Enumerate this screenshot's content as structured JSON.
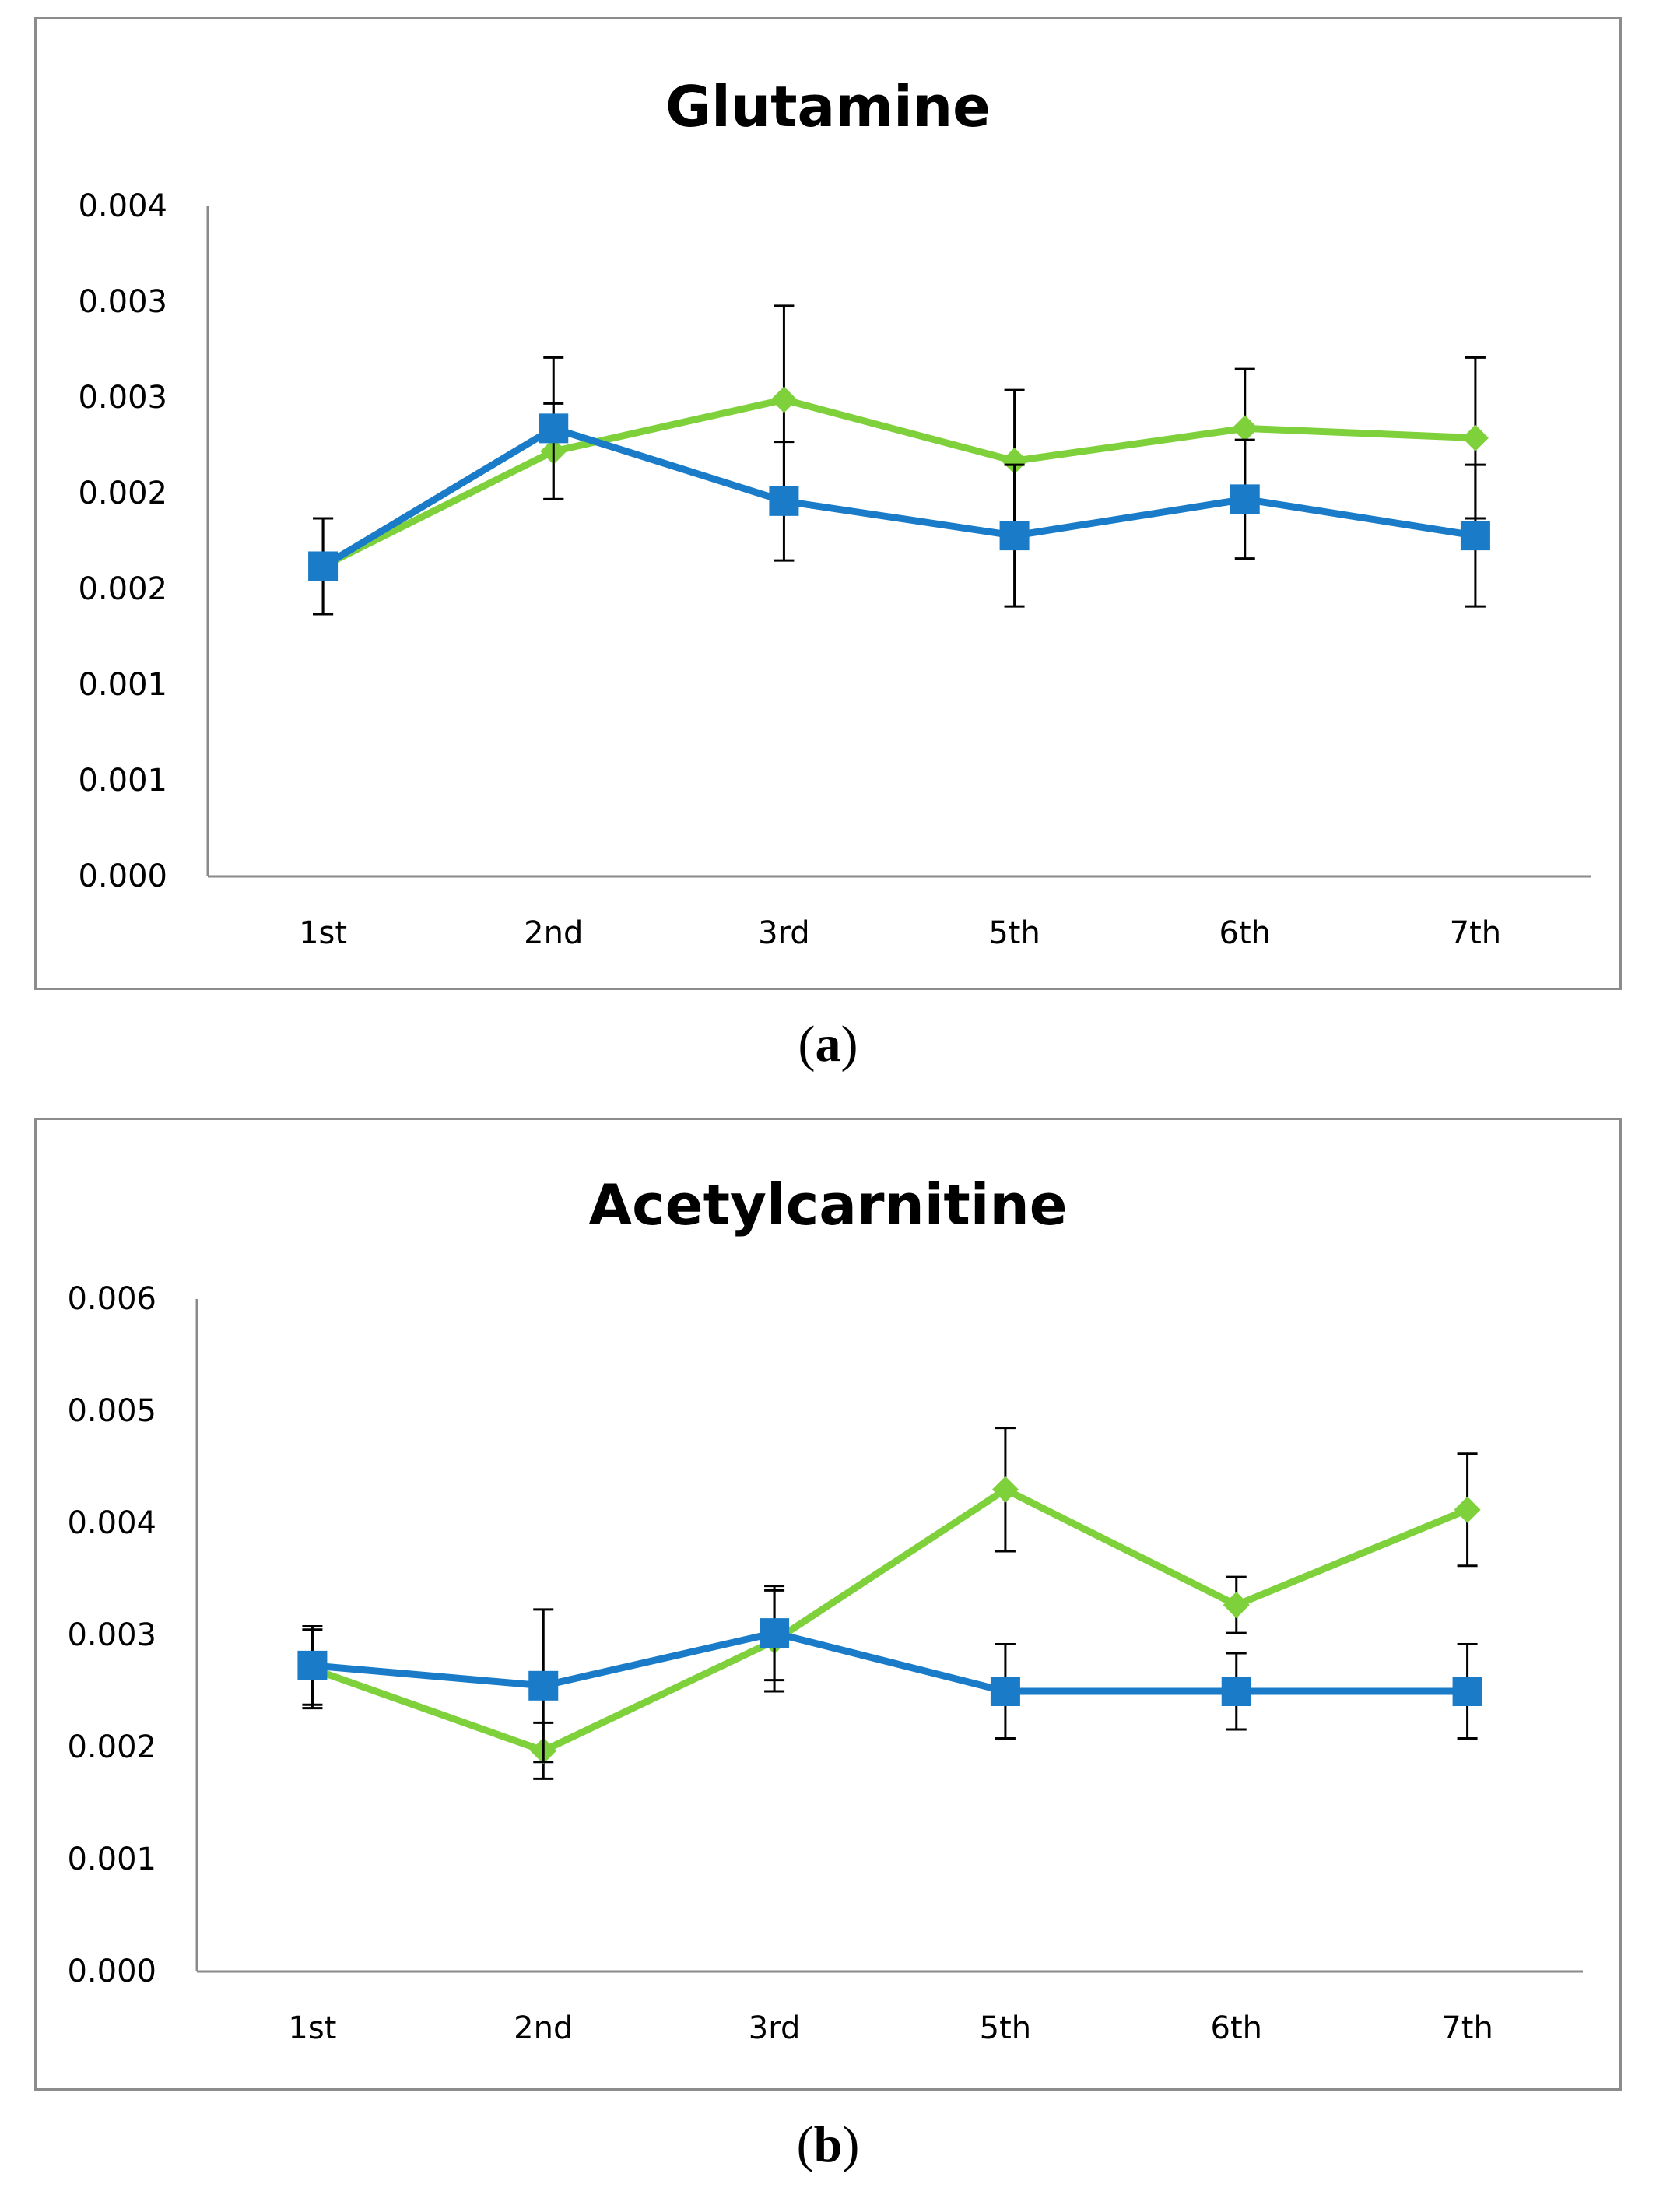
{
  "chart_data": [
    {
      "type": "line",
      "title": "Glutamine",
      "xlabel": "",
      "ylabel": "",
      "categories": [
        "1st",
        "2nd",
        "3rd",
        "5th",
        "6th",
        "7th"
      ],
      "ylim": [
        0,
        0.0035
      ],
      "yticks": [
        0,
        0.0005,
        0.001,
        0.0015,
        0.002,
        0.0025,
        0.003,
        0.0035
      ],
      "ytick_labels": [
        "0.000",
        "0.001",
        "0.001",
        "0.002",
        "0.002",
        "0.003",
        "0.003",
        "0.004"
      ],
      "grid": false,
      "series": [
        {
          "name": "green",
          "color": "#7ed13a",
          "marker": "diamond",
          "values": [
            0.00162,
            0.00222,
            0.00249,
            0.00217,
            0.00234,
            0.00229
          ],
          "errors": [
            0.00025,
            0.00025,
            0.00049,
            0.00037,
            0.00031,
            0.00042
          ]
        },
        {
          "name": "blue",
          "color": "#1a7cc8",
          "marker": "square",
          "values": [
            0.00162,
            0.00234,
            0.00196,
            0.00178,
            0.00197,
            0.00178
          ],
          "errors": [
            0.00025,
            0.00037,
            0.00031,
            0.00037,
            0.00031,
            0.00037
          ]
        }
      ]
    },
    {
      "type": "line",
      "title": "Acetylcarnitine",
      "xlabel": "",
      "ylabel": "",
      "categories": [
        "1st",
        "2nd",
        "3rd",
        "5th",
        "6th",
        "7th"
      ],
      "ylim": [
        0,
        0.006
      ],
      "yticks": [
        0,
        0.001,
        0.002,
        0.003,
        0.004,
        0.005,
        0.006
      ],
      "ytick_labels": [
        "0.000",
        "0.001",
        "0.002",
        "0.003",
        "0.004",
        "0.005",
        "0.006"
      ],
      "grid": false,
      "series": [
        {
          "name": "green",
          "color": "#7ed13a",
          "marker": "diamond",
          "values": [
            0.0027,
            0.00197,
            0.00295,
            0.0043,
            0.00327,
            0.00412
          ],
          "errors": [
            0.00035,
            0.00025,
            0.00045,
            0.00055,
            0.00025,
            0.0005
          ]
        },
        {
          "name": "blue",
          "color": "#1a7cc8",
          "marker": "square",
          "values": [
            0.00273,
            0.00255,
            0.00302,
            0.0025,
            0.0025,
            0.0025
          ],
          "errors": [
            0.00035,
            0.00068,
            0.00042,
            0.00042,
            0.00034,
            0.00042
          ]
        }
      ]
    }
  ],
  "captions": [
    {
      "open": "(",
      "letter": "a",
      "close": ")"
    },
    {
      "open": "(",
      "letter": "b",
      "close": ")"
    }
  ]
}
